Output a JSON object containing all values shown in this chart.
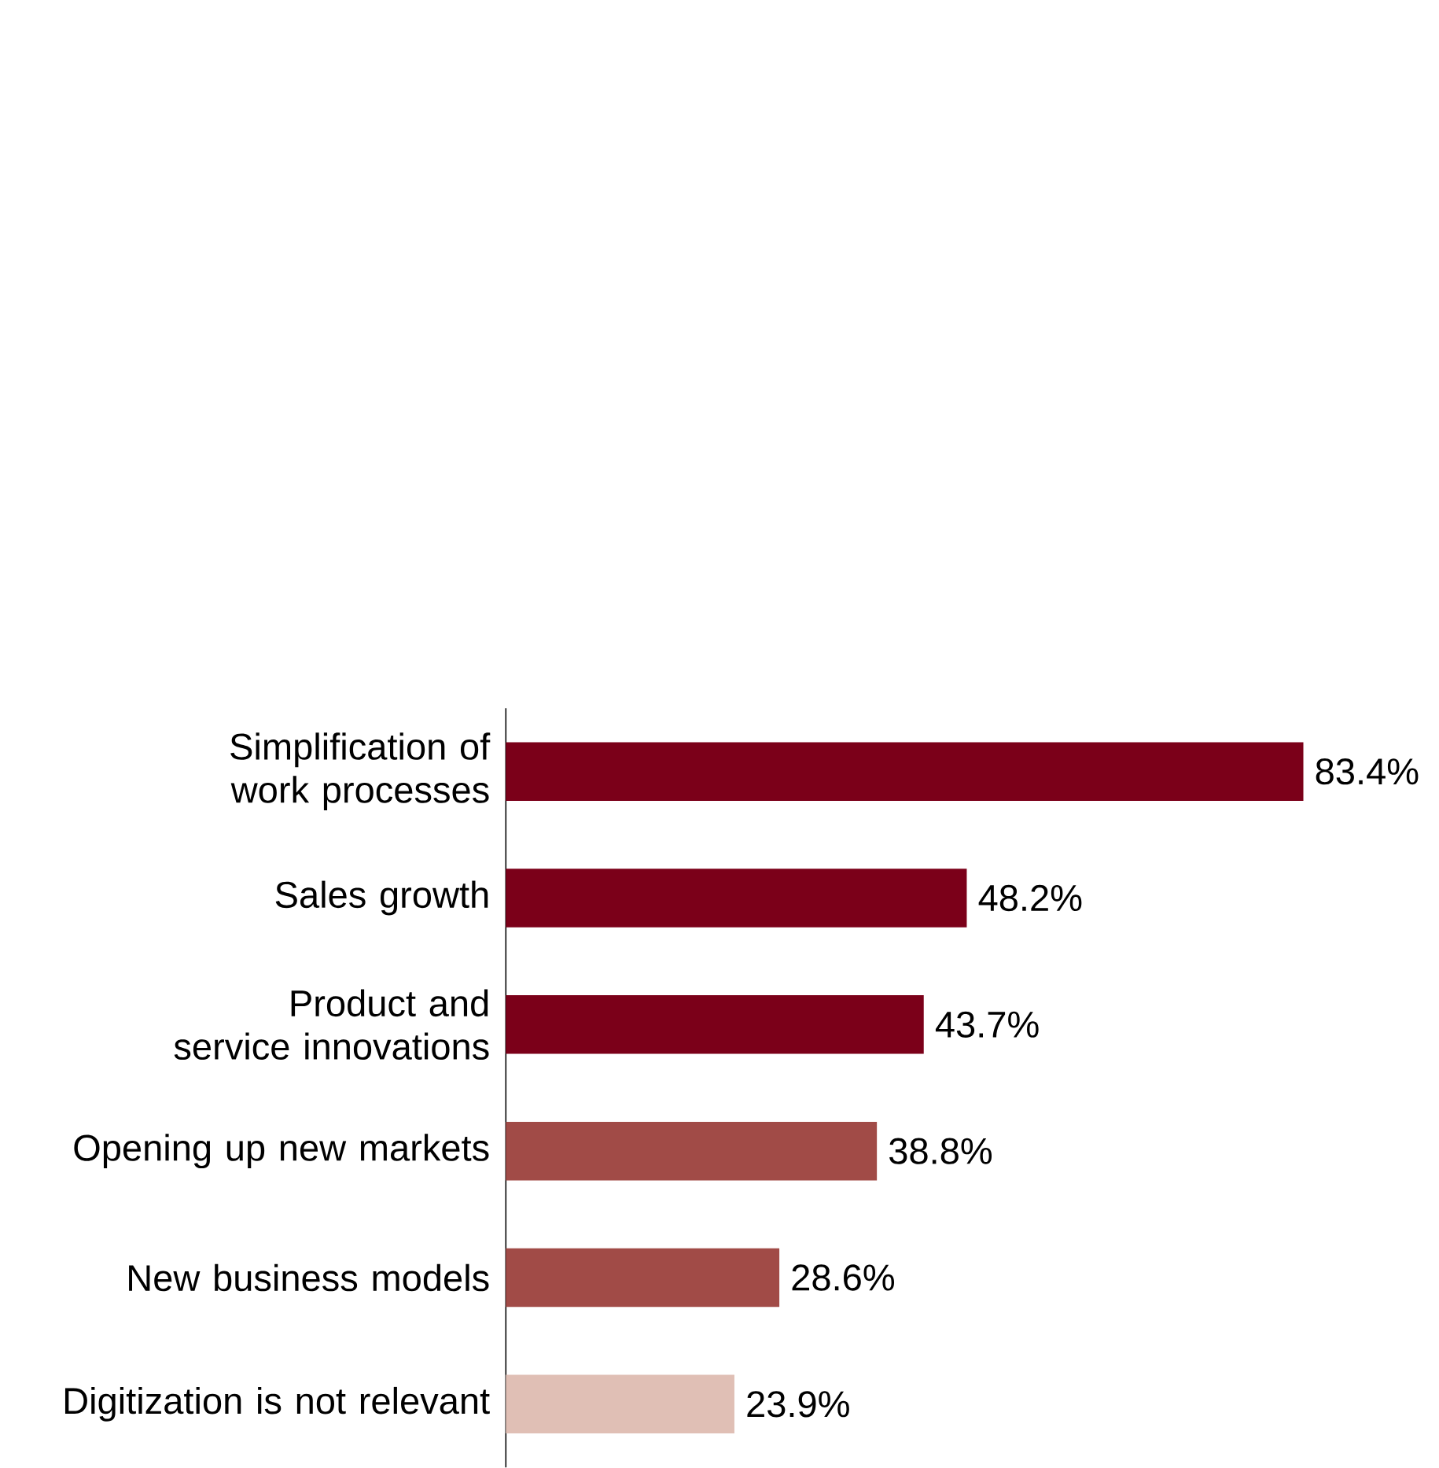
{
  "chart_data": {
    "type": "bar",
    "orientation": "horizontal",
    "categories": [
      "Simplification of work processes",
      "Sales growth",
      "Product and service innovations",
      "Opening up new markets",
      "New business models",
      "Digitization is not relevant"
    ],
    "values": [
      83.4,
      48.2,
      43.7,
      38.8,
      28.6,
      23.9
    ],
    "value_labels": [
      "83.4%",
      "48.2%",
      "43.7%",
      "38.8%",
      "28.6%",
      "23.9%"
    ],
    "colors": [
      "#7b0019",
      "#7b0019",
      "#7b0019",
      "#a14b47",
      "#a14b47",
      "#e0bfb5"
    ],
    "tick_labels": "y"
  }
}
